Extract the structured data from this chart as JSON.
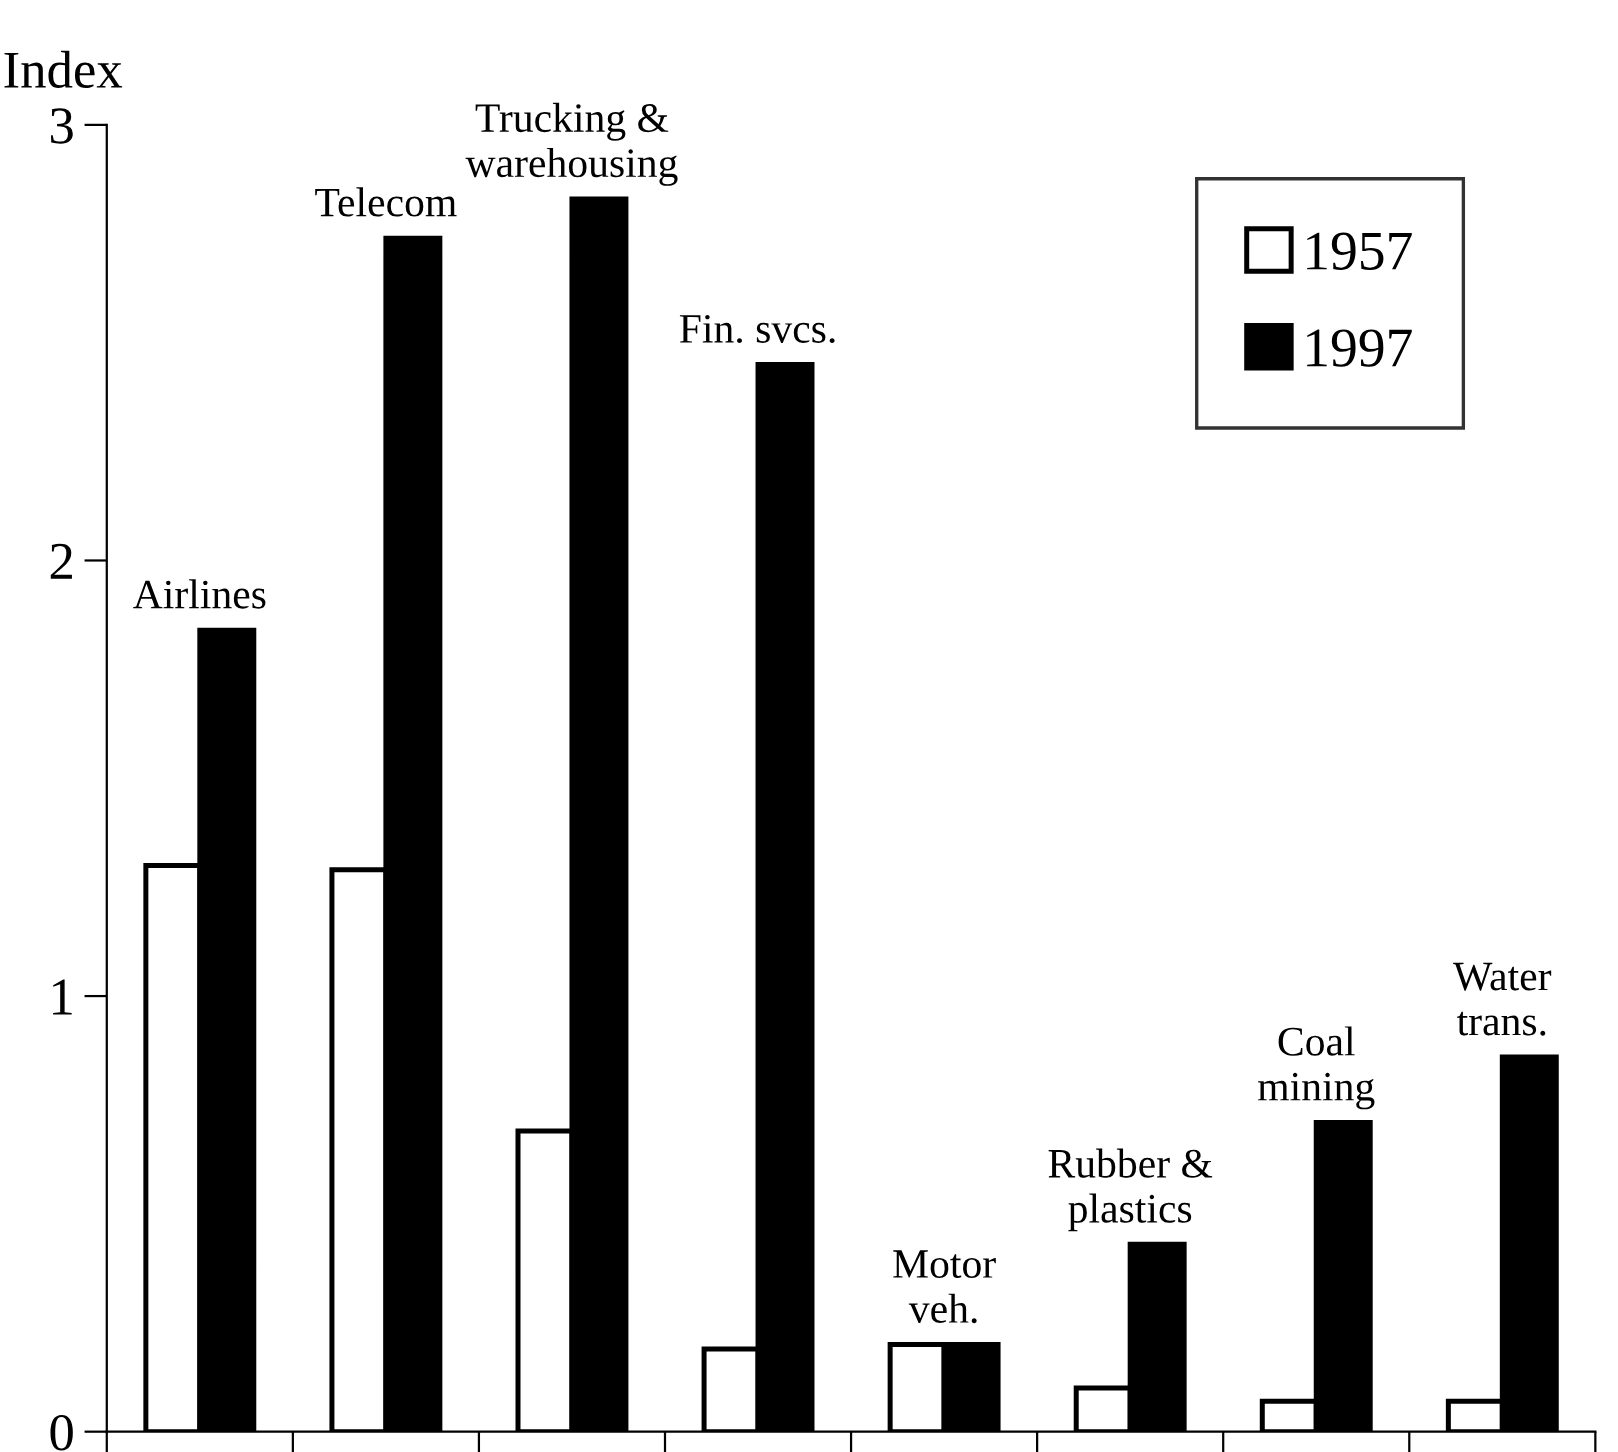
{
  "chart_data": {
    "type": "bar",
    "ylabel": "Index",
    "categories": [
      "Airlines",
      "Telecom",
      "Trucking &\nwarehousing",
      "Fin. svcs.",
      "Motor\nveh.",
      "Rubber &\nplastics",
      "Coal\nmining",
      "Water\ntrans."
    ],
    "series": [
      {
        "name": "1957",
        "color": "#ffffff",
        "values": [
          1.3,
          1.29,
          0.69,
          0.19,
          0.2,
          0.1,
          0.07,
          0.07
        ]
      },
      {
        "name": "1997",
        "color": "#000000",
        "values": [
          1.84,
          2.74,
          2.83,
          2.45,
          0.2,
          0.43,
          0.71,
          0.86
        ]
      }
    ],
    "ylim": [
      0,
      3
    ],
    "yticks": [
      0,
      1,
      2,
      3
    ],
    "grid": false,
    "legend": "top right"
  }
}
